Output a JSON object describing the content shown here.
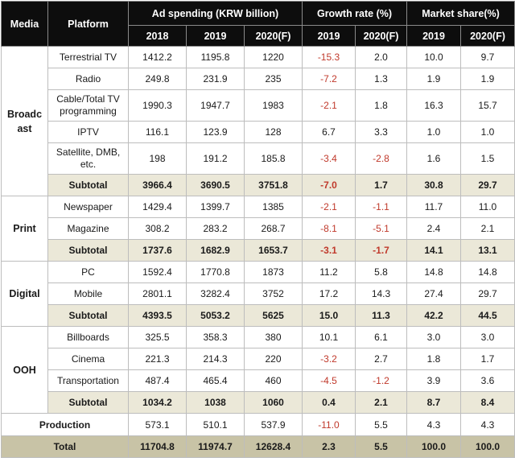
{
  "headers": {
    "media": "Media",
    "platform": "Platform",
    "ad_spending": "Ad spending (KRW billion)",
    "growth_rate": "Growth rate (%)",
    "market_share": "Market share(%)",
    "ad_years": [
      "2018",
      "2019",
      "2020(F)"
    ],
    "growth_years": [
      "2019",
      "2020(F)"
    ],
    "share_years": [
      "2019",
      "2020(F)"
    ]
  },
  "groups": {
    "broadcast": {
      "label": "Broadc\nast",
      "rows": [
        {
          "platform": "Terrestrial TV",
          "a2018": "1412.2",
          "a2019": "1195.8",
          "a2020": "1220",
          "g2019": "-15.3",
          "g2020": "2.0",
          "s2019": "10.0",
          "s2020": "9.7"
        },
        {
          "platform": "Radio",
          "a2018": "249.8",
          "a2019": "231.9",
          "a2020": "235",
          "g2019": "-7.2",
          "g2020": "1.3",
          "s2019": "1.9",
          "s2020": "1.9"
        },
        {
          "platform": "Cable/Total TV programming",
          "a2018": "1990.3",
          "a2019": "1947.7",
          "a2020": "1983",
          "g2019": "-2.1",
          "g2020": "1.8",
          "s2019": "16.3",
          "s2020": "15.7"
        },
        {
          "platform": "IPTV",
          "a2018": "116.1",
          "a2019": "123.9",
          "a2020": "128",
          "g2019": "6.7",
          "g2020": "3.3",
          "s2019": "1.0",
          "s2020": "1.0"
        },
        {
          "platform": "Satellite, DMB, etc.",
          "a2018": "198",
          "a2019": "191.2",
          "a2020": "185.8",
          "g2019": "-3.4",
          "g2020": "-2.8",
          "s2019": "1.6",
          "s2020": "1.5"
        }
      ],
      "subtotal": {
        "platform": "Subtotal",
        "a2018": "3966.4",
        "a2019": "3690.5",
        "a2020": "3751.8",
        "g2019": "-7.0",
        "g2020": "1.7",
        "s2019": "30.8",
        "s2020": "29.7"
      }
    },
    "print": {
      "label": "Print",
      "rows": [
        {
          "platform": "Newspaper",
          "a2018": "1429.4",
          "a2019": "1399.7",
          "a2020": "1385",
          "g2019": "-2.1",
          "g2020": "-1.1",
          "s2019": "11.7",
          "s2020": "11.0"
        },
        {
          "platform": "Magazine",
          "a2018": "308.2",
          "a2019": "283.2",
          "a2020": "268.7",
          "g2019": "-8.1",
          "g2020": "-5.1",
          "s2019": "2.4",
          "s2020": "2.1"
        }
      ],
      "subtotal": {
        "platform": "Subtotal",
        "a2018": "1737.6",
        "a2019": "1682.9",
        "a2020": "1653.7",
        "g2019": "-3.1",
        "g2020": "-1.7",
        "s2019": "14.1",
        "s2020": "13.1"
      }
    },
    "digital": {
      "label": "Digital",
      "rows": [
        {
          "platform": "PC",
          "a2018": "1592.4",
          "a2019": "1770.8",
          "a2020": "1873",
          "g2019": "11.2",
          "g2020": "5.8",
          "s2019": "14.8",
          "s2020": "14.8"
        },
        {
          "platform": "Mobile",
          "a2018": "2801.1",
          "a2019": "3282.4",
          "a2020": "3752",
          "g2019": "17.2",
          "g2020": "14.3",
          "s2019": "27.4",
          "s2020": "29.7"
        }
      ],
      "subtotal": {
        "platform": "Subtotal",
        "a2018": "4393.5",
        "a2019": "5053.2",
        "a2020": "5625",
        "g2019": "15.0",
        "g2020": "11.3",
        "s2019": "42.2",
        "s2020": "44.5"
      }
    },
    "ooh": {
      "label": "OOH",
      "rows": [
        {
          "platform": "Billboards",
          "a2018": "325.5",
          "a2019": "358.3",
          "a2020": "380",
          "g2019": "10.1",
          "g2020": "6.1",
          "s2019": "3.0",
          "s2020": "3.0"
        },
        {
          "platform": "Cinema",
          "a2018": "221.3",
          "a2019": "214.3",
          "a2020": "220",
          "g2019": "-3.2",
          "g2020": "2.7",
          "s2019": "1.8",
          "s2020": "1.7"
        },
        {
          "platform": "Transportation",
          "a2018": "487.4",
          "a2019": "465.4",
          "a2020": "460",
          "g2019": "-4.5",
          "g2020": "-1.2",
          "s2019": "3.9",
          "s2020": "3.6"
        }
      ],
      "subtotal": {
        "platform": "Subtotal",
        "a2018": "1034.2",
        "a2019": "1038",
        "a2020": "1060",
        "g2019": "0.4",
        "g2020": "2.1",
        "s2019": "8.7",
        "s2020": "8.4"
      }
    }
  },
  "production": {
    "label": "Production",
    "a2018": "573.1",
    "a2019": "510.1",
    "a2020": "537.9",
    "g2019": "-11.0",
    "g2020": "5.5",
    "s2019": "4.3",
    "s2020": "4.3"
  },
  "total": {
    "label": "Total",
    "a2018": "11704.8",
    "a2019": "11974.7",
    "a2020": "12628.4",
    "g2019": "2.3",
    "g2020": "5.5",
    "s2019": "100.0",
    "s2020": "100.0"
  },
  "colors": {
    "header_bg": "#0d0d0d",
    "subtotal_bg": "#ebe8d8",
    "total_bg": "#c8c3a6",
    "negative_text": "#c0392b"
  }
}
